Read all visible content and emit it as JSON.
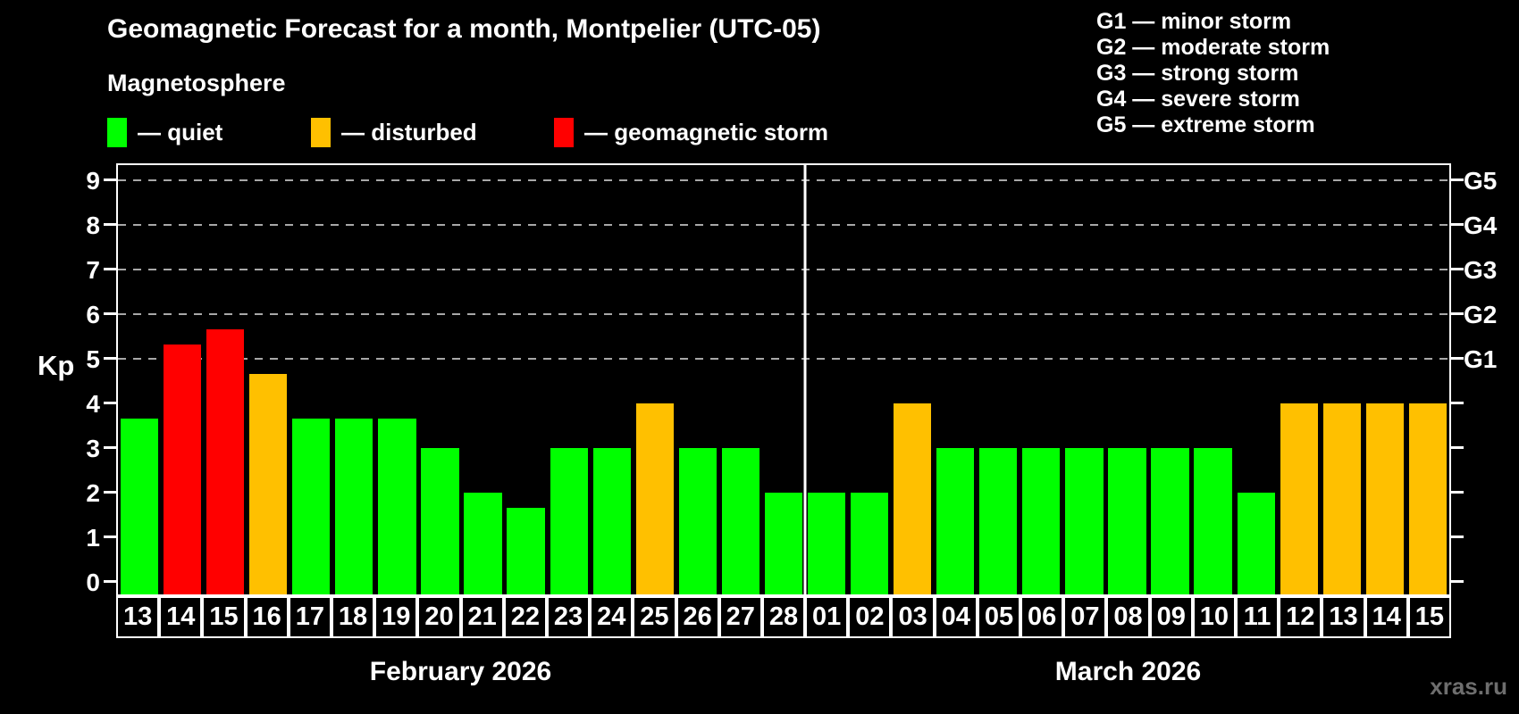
{
  "title": "Geomagnetic Forecast for a month, Montpelier (UTC-05)",
  "subtitle": "Magnetosphere",
  "legend": {
    "items": [
      {
        "name": "quiet",
        "label": "— quiet",
        "color": "#00ff00"
      },
      {
        "name": "disturbed",
        "label": "— disturbed",
        "color": "#ffc000"
      },
      {
        "name": "storm",
        "label": "— geomagnetic storm",
        "color": "#ff0000"
      }
    ]
  },
  "g_scale_legend": [
    "G1 — minor storm",
    "G2 — moderate storm",
    "G3 — strong storm",
    "G4 — severe storm",
    "G5 — extreme storm"
  ],
  "axes": {
    "y_left_label": "Kp",
    "kp_tick_labels": [
      "0",
      "1",
      "2",
      "3",
      "4",
      "5",
      "6",
      "7",
      "8",
      "9"
    ]
  },
  "watermark": "xras.ru",
  "colors": {
    "background": "#000000",
    "axis": "#ffffff",
    "gridline": "#a8a8a8",
    "text": "#ffffff",
    "watermark": "#6e6e6e"
  },
  "chart_data": {
    "type": "bar",
    "title": "Geomagnetic Forecast for a month, Montpelier (UTC-05)",
    "xlabel": "",
    "ylabel": "Kp",
    "ylim": [
      0,
      9
    ],
    "grid": "horizontal dashed lines at Kp 5,6,7,8,9",
    "gridline_levels": [
      5,
      6,
      7,
      8,
      9
    ],
    "legend_position": "top-left",
    "right_axis": {
      "G1": 5,
      "G2": 6,
      "G3": 7,
      "G4": 8,
      "G5": 9
    },
    "status_colors": {
      "quiet": "#00ff00",
      "disturbed": "#ffc000",
      "storm": "#ff0000"
    },
    "months": [
      {
        "label": "February 2026",
        "categories": [
          "13",
          "14",
          "15",
          "16",
          "17",
          "18",
          "19",
          "20",
          "21",
          "22",
          "23",
          "24",
          "25",
          "26",
          "27",
          "28"
        ],
        "values": [
          3.67,
          5.33,
          5.67,
          4.67,
          3.67,
          3.67,
          3.67,
          3,
          2,
          1.67,
          3,
          3,
          4,
          3,
          3,
          2
        ],
        "statuses": [
          "quiet",
          "storm",
          "storm",
          "disturbed",
          "quiet",
          "quiet",
          "quiet",
          "quiet",
          "quiet",
          "quiet",
          "quiet",
          "quiet",
          "disturbed",
          "quiet",
          "quiet",
          "quiet"
        ]
      },
      {
        "label": "March 2026",
        "categories": [
          "01",
          "02",
          "03",
          "04",
          "05",
          "06",
          "07",
          "08",
          "09",
          "10",
          "11",
          "12",
          "13",
          "14",
          "15"
        ],
        "values": [
          2,
          2,
          4,
          3,
          3,
          3,
          3,
          3,
          3,
          3,
          2,
          4,
          4,
          4,
          4
        ],
        "statuses": [
          "quiet",
          "quiet",
          "disturbed",
          "quiet",
          "quiet",
          "quiet",
          "quiet",
          "quiet",
          "quiet",
          "quiet",
          "quiet",
          "disturbed",
          "disturbed",
          "disturbed",
          "disturbed"
        ]
      }
    ]
  }
}
